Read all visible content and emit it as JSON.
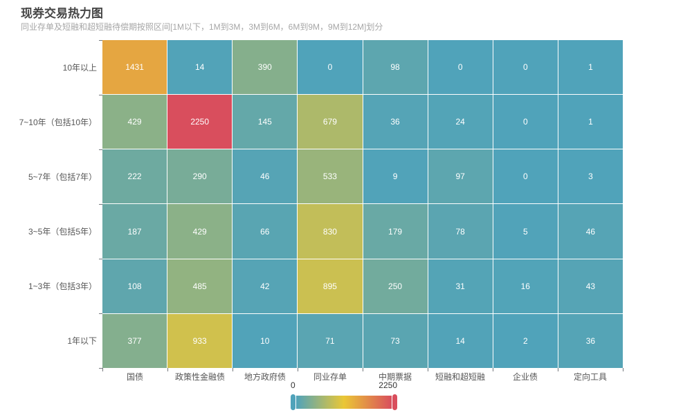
{
  "header": {
    "title": "现券交易热力图",
    "subtitle": "同业存单及短融和超短融待偿期按照区间[1M以下，1M到3M，3M到6M，6M到9M，9M到12M]划分"
  },
  "chart_data": {
    "type": "heatmap",
    "title": "现券交易热力图",
    "subtitle": "同业存单及短融和超短融待偿期按照区间[1M以下，1M到3M，3M到6M，6M到9M，9M到12M]划分",
    "x_categories": [
      "国债",
      "政策性金融债",
      "地方政府债",
      "同业存单",
      "中期票据",
      "短融和超短融",
      "企业债",
      "定向工具"
    ],
    "y_categories": [
      "10年以上",
      "7~10年（包括10年）",
      "5~7年（包括7年）",
      "3~5年（包括5年）",
      "1~3年（包括3年）",
      "1年以下"
    ],
    "rows": [
      [
        1431,
        14,
        390,
        0,
        98,
        0,
        0,
        1
      ],
      [
        429,
        2250,
        145,
        679,
        36,
        24,
        0,
        1
      ],
      [
        222,
        290,
        46,
        533,
        9,
        97,
        0,
        3
      ],
      [
        187,
        429,
        66,
        830,
        179,
        78,
        5,
        46
      ],
      [
        108,
        485,
        42,
        895,
        250,
        31,
        16,
        43
      ],
      [
        377,
        933,
        10,
        71,
        73,
        14,
        2,
        36
      ]
    ],
    "cell_label_color": "#ffffff",
    "visual_map": {
      "min": 0,
      "max": 2250,
      "min_label": "0",
      "max_label": "2250",
      "gradient": [
        "#50a3ba",
        "#eac736",
        "#d94e5d"
      ]
    },
    "layout_hints": {
      "legend_position": "bottom-center",
      "grid": "off",
      "value_labels": "on"
    }
  }
}
